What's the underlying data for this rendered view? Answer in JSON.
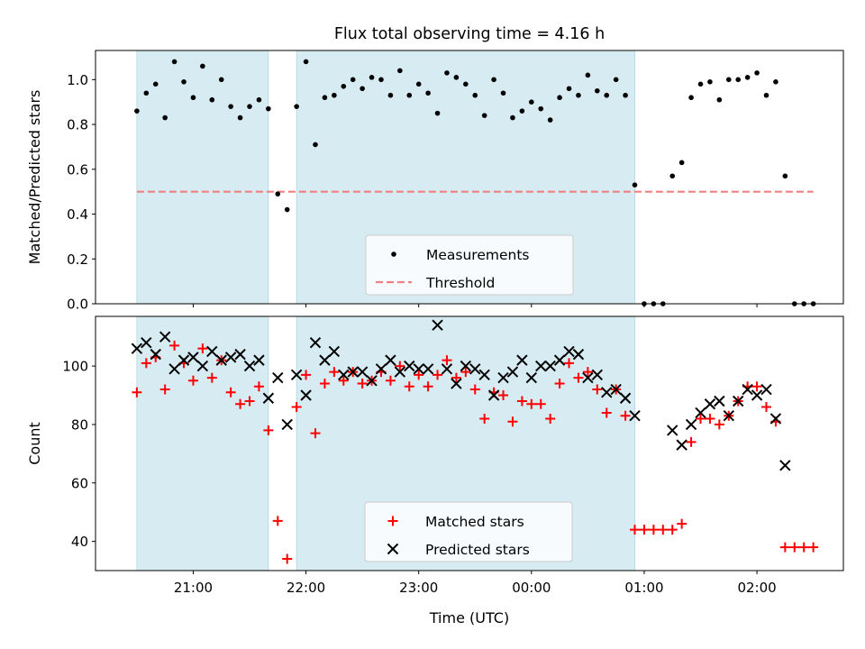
{
  "figure": {
    "title": "Flux total observing time = 4.16 h",
    "xlabel": "Time (UTC)"
  },
  "colors": {
    "shade": "#add8e6",
    "measurements": "#000000",
    "threshold": "#f08080",
    "matched": "#ff0000",
    "predicted": "#000000"
  },
  "chart_data": [
    {
      "type": "scatter",
      "ylabel": "Matched/Predicted stars",
      "xlim": [
        "20:08",
        "02:46"
      ],
      "ylim": [
        0,
        1.13
      ],
      "yticks": [
        0.0,
        0.2,
        0.4,
        0.6,
        0.8,
        1.0
      ],
      "ytick_labels": [
        "0.0",
        "0.2",
        "0.4",
        "0.6",
        "0.8",
        "1.0"
      ],
      "shaded_intervals": [
        [
          "20:30",
          "21:40"
        ],
        [
          "21:55",
          "00:55"
        ]
      ],
      "legend": {
        "position": "lower-center",
        "entries": [
          "Measurements",
          "Threshold"
        ]
      },
      "threshold": {
        "name": "Threshold",
        "y": 0.5,
        "x": [
          "20:30",
          "02:30"
        ]
      },
      "series": [
        {
          "name": "Measurements",
          "marker": "dot",
          "points": [
            [
              "20:30",
              0.86
            ],
            [
              "20:35",
              0.94
            ],
            [
              "20:40",
              0.98
            ],
            [
              "20:45",
              0.83
            ],
            [
              "20:50",
              1.08
            ],
            [
              "20:55",
              0.99
            ],
            [
              "21:00",
              0.92
            ],
            [
              "21:05",
              1.06
            ],
            [
              "21:10",
              0.91
            ],
            [
              "21:15",
              1.0
            ],
            [
              "21:20",
              0.88
            ],
            [
              "21:25",
              0.83
            ],
            [
              "21:30",
              0.88
            ],
            [
              "21:35",
              0.91
            ],
            [
              "21:40",
              0.87
            ],
            [
              "21:45",
              0.49
            ],
            [
              "21:50",
              0.42
            ],
            [
              "21:55",
              0.88
            ],
            [
              "22:00",
              1.08
            ],
            [
              "22:05",
              0.71
            ],
            [
              "22:10",
              0.92
            ],
            [
              "22:15",
              0.93
            ],
            [
              "22:20",
              0.97
            ],
            [
              "22:25",
              1.0
            ],
            [
              "22:30",
              0.96
            ],
            [
              "22:35",
              1.01
            ],
            [
              "22:40",
              1.0
            ],
            [
              "22:45",
              0.93
            ],
            [
              "22:50",
              1.04
            ],
            [
              "22:55",
              0.93
            ],
            [
              "23:00",
              0.98
            ],
            [
              "23:05",
              0.94
            ],
            [
              "23:10",
              0.85
            ],
            [
              "23:15",
              1.03
            ],
            [
              "23:20",
              1.01
            ],
            [
              "23:25",
              0.98
            ],
            [
              "23:30",
              0.93
            ],
            [
              "23:35",
              0.84
            ],
            [
              "23:40",
              1.0
            ],
            [
              "23:45",
              0.94
            ],
            [
              "23:50",
              0.83
            ],
            [
              "23:55",
              0.86
            ],
            [
              "00:00",
              0.9
            ],
            [
              "00:05",
              0.87
            ],
            [
              "00:10",
              0.82
            ],
            [
              "00:15",
              0.92
            ],
            [
              "00:20",
              0.96
            ],
            [
              "00:25",
              0.93
            ],
            [
              "00:30",
              1.02
            ],
            [
              "00:35",
              0.95
            ],
            [
              "00:40",
              0.93
            ],
            [
              "00:45",
              1.0
            ],
            [
              "00:50",
              0.93
            ],
            [
              "00:55",
              0.53
            ],
            [
              "01:00",
              0.0
            ],
            [
              "01:05",
              0.0
            ],
            [
              "01:10",
              0.0
            ],
            [
              "01:15",
              0.57
            ],
            [
              "01:20",
              0.63
            ],
            [
              "01:25",
              0.92
            ],
            [
              "01:30",
              0.98
            ],
            [
              "01:35",
              0.99
            ],
            [
              "01:40",
              0.91
            ],
            [
              "01:45",
              1.0
            ],
            [
              "01:50",
              1.0
            ],
            [
              "01:55",
              1.01
            ],
            [
              "02:00",
              1.03
            ],
            [
              "02:05",
              0.93
            ],
            [
              "02:10",
              0.99
            ],
            [
              "02:15",
              0.57
            ],
            [
              "02:20",
              0.0
            ],
            [
              "02:25",
              0.0
            ],
            [
              "02:30",
              0.0
            ]
          ]
        }
      ]
    },
    {
      "type": "scatter",
      "ylabel": "Count",
      "xlim": [
        "20:08",
        "02:46"
      ],
      "ylim": [
        30,
        117
      ],
      "yticks": [
        40,
        60,
        80,
        100
      ],
      "ytick_labels": [
        "40",
        "60",
        "80",
        "100"
      ],
      "xticks": [
        "21:00",
        "22:00",
        "23:00",
        "00:00",
        "01:00",
        "02:00"
      ],
      "shaded_intervals": [
        [
          "20:30",
          "21:40"
        ],
        [
          "21:55",
          "00:55"
        ]
      ],
      "legend": {
        "position": "lower-center",
        "entries": [
          "Matched stars",
          "Predicted stars"
        ]
      },
      "series": [
        {
          "name": "Matched stars",
          "marker": "plus",
          "points": [
            [
              "20:30",
              91
            ],
            [
              "20:35",
              101
            ],
            [
              "20:40",
              103
            ],
            [
              "20:45",
              92
            ],
            [
              "20:50",
              107
            ],
            [
              "20:55",
              101
            ],
            [
              "21:00",
              95
            ],
            [
              "21:05",
              106
            ],
            [
              "21:10",
              96
            ],
            [
              "21:15",
              102
            ],
            [
              "21:20",
              91
            ],
            [
              "21:25",
              87
            ],
            [
              "21:30",
              88
            ],
            [
              "21:35",
              93
            ],
            [
              "21:40",
              78
            ],
            [
              "21:45",
              47
            ],
            [
              "21:50",
              34
            ],
            [
              "21:55",
              86
            ],
            [
              "22:00",
              97
            ],
            [
              "22:05",
              77
            ],
            [
              "22:10",
              94
            ],
            [
              "22:15",
              98
            ],
            [
              "22:20",
              95
            ],
            [
              "22:25",
              98
            ],
            [
              "22:30",
              94
            ],
            [
              "22:35",
              95
            ],
            [
              "22:40",
              98
            ],
            [
              "22:45",
              95
            ],
            [
              "22:50",
              100
            ],
            [
              "22:55",
              93
            ],
            [
              "23:00",
              97
            ],
            [
              "23:05",
              93
            ],
            [
              "23:10",
              97
            ],
            [
              "23:15",
              102
            ],
            [
              "23:20",
              96
            ],
            [
              "23:25",
              98
            ],
            [
              "23:30",
              92
            ],
            [
              "23:35",
              82
            ],
            [
              "23:40",
              91
            ],
            [
              "23:45",
              90
            ],
            [
              "23:50",
              81
            ],
            [
              "23:55",
              88
            ],
            [
              "00:00",
              87
            ],
            [
              "00:05",
              87
            ],
            [
              "00:10",
              82
            ],
            [
              "00:15",
              94
            ],
            [
              "00:20",
              101
            ],
            [
              "00:25",
              96
            ],
            [
              "00:30",
              98
            ],
            [
              "00:35",
              92
            ],
            [
              "00:40",
              84
            ],
            [
              "00:45",
              92
            ],
            [
              "00:50",
              83
            ],
            [
              "00:55",
              44
            ],
            [
              "01:00",
              44
            ],
            [
              "01:05",
              44
            ],
            [
              "01:10",
              44
            ],
            [
              "01:15",
              44
            ],
            [
              "01:20",
              46
            ],
            [
              "01:25",
              74
            ],
            [
              "01:30",
              82
            ],
            [
              "01:35",
              82
            ],
            [
              "01:40",
              80
            ],
            [
              "01:45",
              83
            ],
            [
              "01:50",
              88
            ],
            [
              "01:55",
              93
            ],
            [
              "02:00",
              93
            ],
            [
              "02:05",
              86
            ],
            [
              "02:10",
              81
            ],
            [
              "02:15",
              38
            ],
            [
              "02:20",
              38
            ],
            [
              "02:25",
              38
            ],
            [
              "02:30",
              38
            ]
          ]
        },
        {
          "name": "Predicted stars",
          "marker": "x",
          "points": [
            [
              "20:30",
              106
            ],
            [
              "20:35",
              108
            ],
            [
              "20:40",
              104
            ],
            [
              "20:45",
              110
            ],
            [
              "20:50",
              99
            ],
            [
              "20:55",
              102
            ],
            [
              "21:00",
              103
            ],
            [
              "21:05",
              100
            ],
            [
              "21:10",
              105
            ],
            [
              "21:15",
              102
            ],
            [
              "21:20",
              103
            ],
            [
              "21:25",
              104
            ],
            [
              "21:30",
              100
            ],
            [
              "21:35",
              102
            ],
            [
              "21:40",
              89
            ],
            [
              "21:45",
              96
            ],
            [
              "21:50",
              80
            ],
            [
              "21:55",
              97
            ],
            [
              "22:00",
              90
            ],
            [
              "22:05",
              108
            ],
            [
              "22:10",
              102
            ],
            [
              "22:15",
              105
            ],
            [
              "22:20",
              97
            ],
            [
              "22:25",
              98
            ],
            [
              "22:30",
              98
            ],
            [
              "22:35",
              95
            ],
            [
              "22:40",
              99
            ],
            [
              "22:45",
              102
            ],
            [
              "22:50",
              98
            ],
            [
              "22:55",
              100
            ],
            [
              "23:00",
              99
            ],
            [
              "23:05",
              99
            ],
            [
              "23:10",
              114
            ],
            [
              "23:15",
              99
            ],
            [
              "23:20",
              94
            ],
            [
              "23:25",
              100
            ],
            [
              "23:30",
              99
            ],
            [
              "23:35",
              97
            ],
            [
              "23:40",
              90
            ],
            [
              "23:45",
              96
            ],
            [
              "23:50",
              98
            ],
            [
              "23:55",
              102
            ],
            [
              "00:00",
              96
            ],
            [
              "00:05",
              100
            ],
            [
              "00:10",
              100
            ],
            [
              "00:15",
              102
            ],
            [
              "00:20",
              105
            ],
            [
              "00:25",
              104
            ],
            [
              "00:30",
              96
            ],
            [
              "00:35",
              97
            ],
            [
              "00:40",
              91
            ],
            [
              "00:45",
              92
            ],
            [
              "00:50",
              89
            ],
            [
              "00:55",
              83
            ],
            [
              "01:15",
              78
            ],
            [
              "01:20",
              73
            ],
            [
              "01:25",
              80
            ],
            [
              "01:30",
              84
            ],
            [
              "01:35",
              87
            ],
            [
              "01:40",
              88
            ],
            [
              "01:45",
              83
            ],
            [
              "01:50",
              88
            ],
            [
              "01:55",
              92
            ],
            [
              "02:00",
              90
            ],
            [
              "02:05",
              92
            ],
            [
              "02:10",
              82
            ],
            [
              "02:15",
              66
            ]
          ]
        }
      ]
    }
  ]
}
